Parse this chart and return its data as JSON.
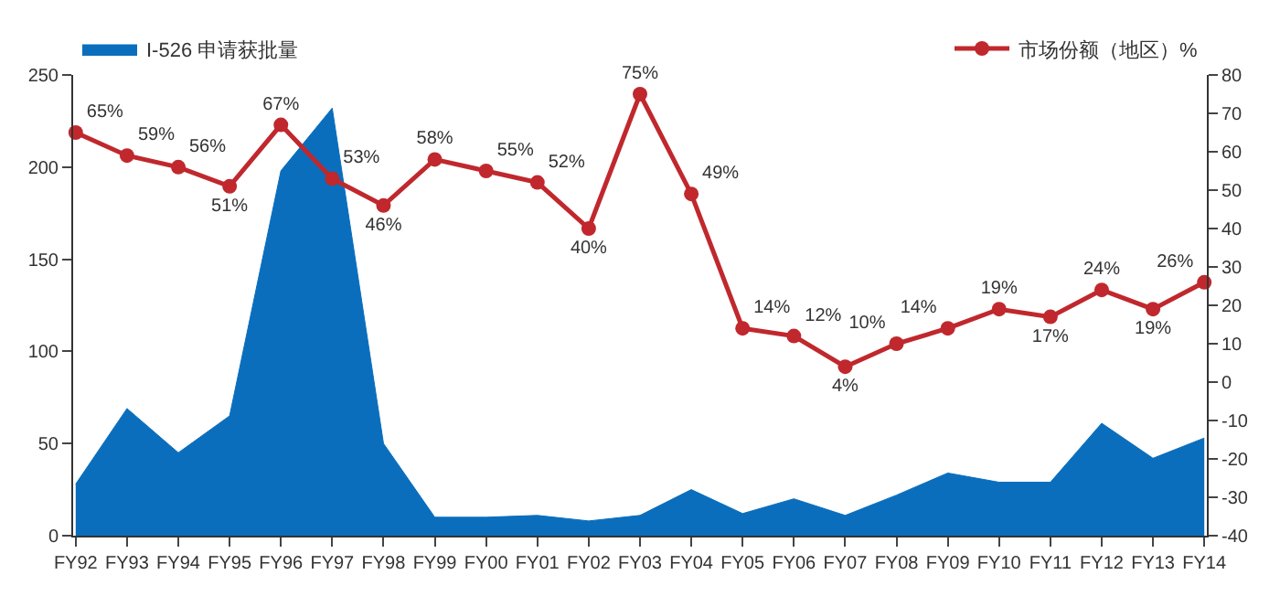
{
  "chart_data": {
    "type": "area",
    "categories": [
      "FY92",
      "FY93",
      "FY94",
      "FY95",
      "FY96",
      "FY97",
      "FY98",
      "FY99",
      "FY00",
      "FY01",
      "FY02",
      "FY03",
      "FY04",
      "FY05",
      "FY06",
      "FY07",
      "FY08",
      "FY09",
      "FY10",
      "FY11",
      "FY12",
      "FY13",
      "FY14"
    ],
    "series": [
      {
        "name": "I-526 申请获批量",
        "color": "#0a6ebd",
        "values": [
          28,
          69,
          45,
          65,
          198,
          232,
          50,
          10,
          10,
          11,
          8,
          11,
          25,
          12,
          20,
          11,
          22,
          34,
          29,
          29,
          61,
          42,
          53
        ]
      },
      {
        "name": "市场份额（地区）%",
        "type": "line",
        "axis": "y2",
        "color": "#c0282d",
        "marker": "circle",
        "values": [
          65,
          59,
          56,
          51,
          67,
          53,
          46,
          58,
          55,
          52,
          40,
          75,
          49,
          14,
          12,
          4,
          10,
          14,
          19,
          17,
          24,
          19,
          26
        ],
        "value_labels": [
          "65%",
          "59%",
          "56%",
          "51%",
          "67%",
          "53%",
          "46%",
          "58%",
          "55%",
          "52%",
          "40%",
          "75%",
          "49%",
          "14%",
          "12%",
          "4%",
          "10%",
          "14%",
          "19%",
          "17%",
          "24%",
          "19%",
          "26%"
        ]
      }
    ],
    "ylim": [
      0,
      250
    ],
    "yticks": [
      0,
      50,
      100,
      150,
      200,
      250
    ],
    "y2lim": [
      -40,
      80
    ],
    "y2ticks": [
      -40,
      -30,
      -20,
      -10,
      0,
      10,
      20,
      30,
      40,
      50,
      60,
      70,
      80
    ],
    "legend": "top"
  }
}
